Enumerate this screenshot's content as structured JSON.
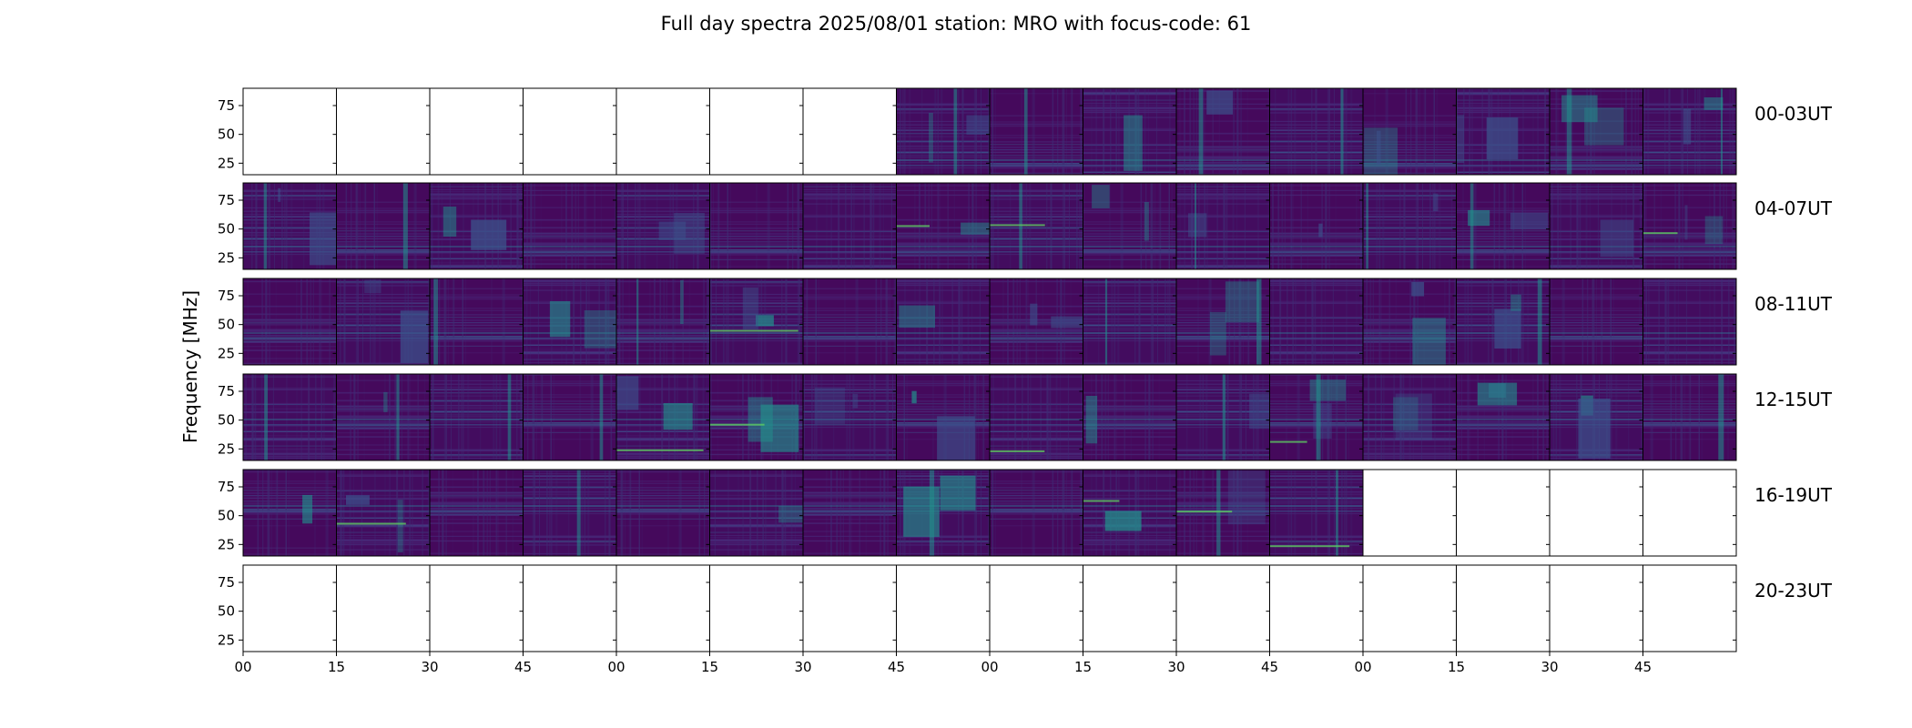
{
  "chart_data": {
    "type": "heatmap",
    "title": "Full day spectra 2025/08/01 station: MRO with focus-code: 61",
    "ylabel": "Frequency [MHz]",
    "xlabel": "",
    "ylim": [
      15,
      90
    ],
    "y_ticks": [
      "25",
      "50",
      "75"
    ],
    "x_ticks": [
      "00",
      "15",
      "30",
      "45",
      "00",
      "15",
      "30",
      "45",
      "00",
      "15",
      "30",
      "45",
      "00",
      "15",
      "30",
      "45"
    ],
    "panels_per_row": 16,
    "panel_minutes": 15,
    "colormap": [
      "#440154",
      "#3b528b",
      "#21918c",
      "#5ec962",
      "#fde725"
    ],
    "rows": [
      {
        "label": "00-03UT",
        "has_data": [
          0,
          0,
          0,
          0,
          0,
          0,
          0,
          1,
          1,
          1,
          1,
          1,
          1,
          1,
          1,
          1
        ]
      },
      {
        "label": "04-07UT",
        "has_data": [
          1,
          1,
          1,
          1,
          1,
          1,
          1,
          1,
          1,
          1,
          1,
          1,
          1,
          1,
          1,
          1
        ]
      },
      {
        "label": "08-11UT",
        "has_data": [
          1,
          1,
          1,
          1,
          1,
          1,
          1,
          1,
          1,
          1,
          1,
          1,
          1,
          1,
          1,
          1
        ]
      },
      {
        "label": "12-15UT",
        "has_data": [
          1,
          1,
          1,
          1,
          1,
          1,
          1,
          1,
          1,
          1,
          1,
          1,
          1,
          1,
          1,
          1
        ]
      },
      {
        "label": "16-19UT",
        "has_data": [
          1,
          1,
          1,
          1,
          1,
          1,
          1,
          1,
          1,
          1,
          1,
          1,
          0,
          0,
          0,
          0
        ]
      },
      {
        "label": "20-23UT",
        "has_data": [
          0,
          0,
          0,
          0,
          0,
          0,
          0,
          0,
          0,
          0,
          0,
          0,
          0,
          0,
          0,
          0
        ]
      }
    ]
  }
}
